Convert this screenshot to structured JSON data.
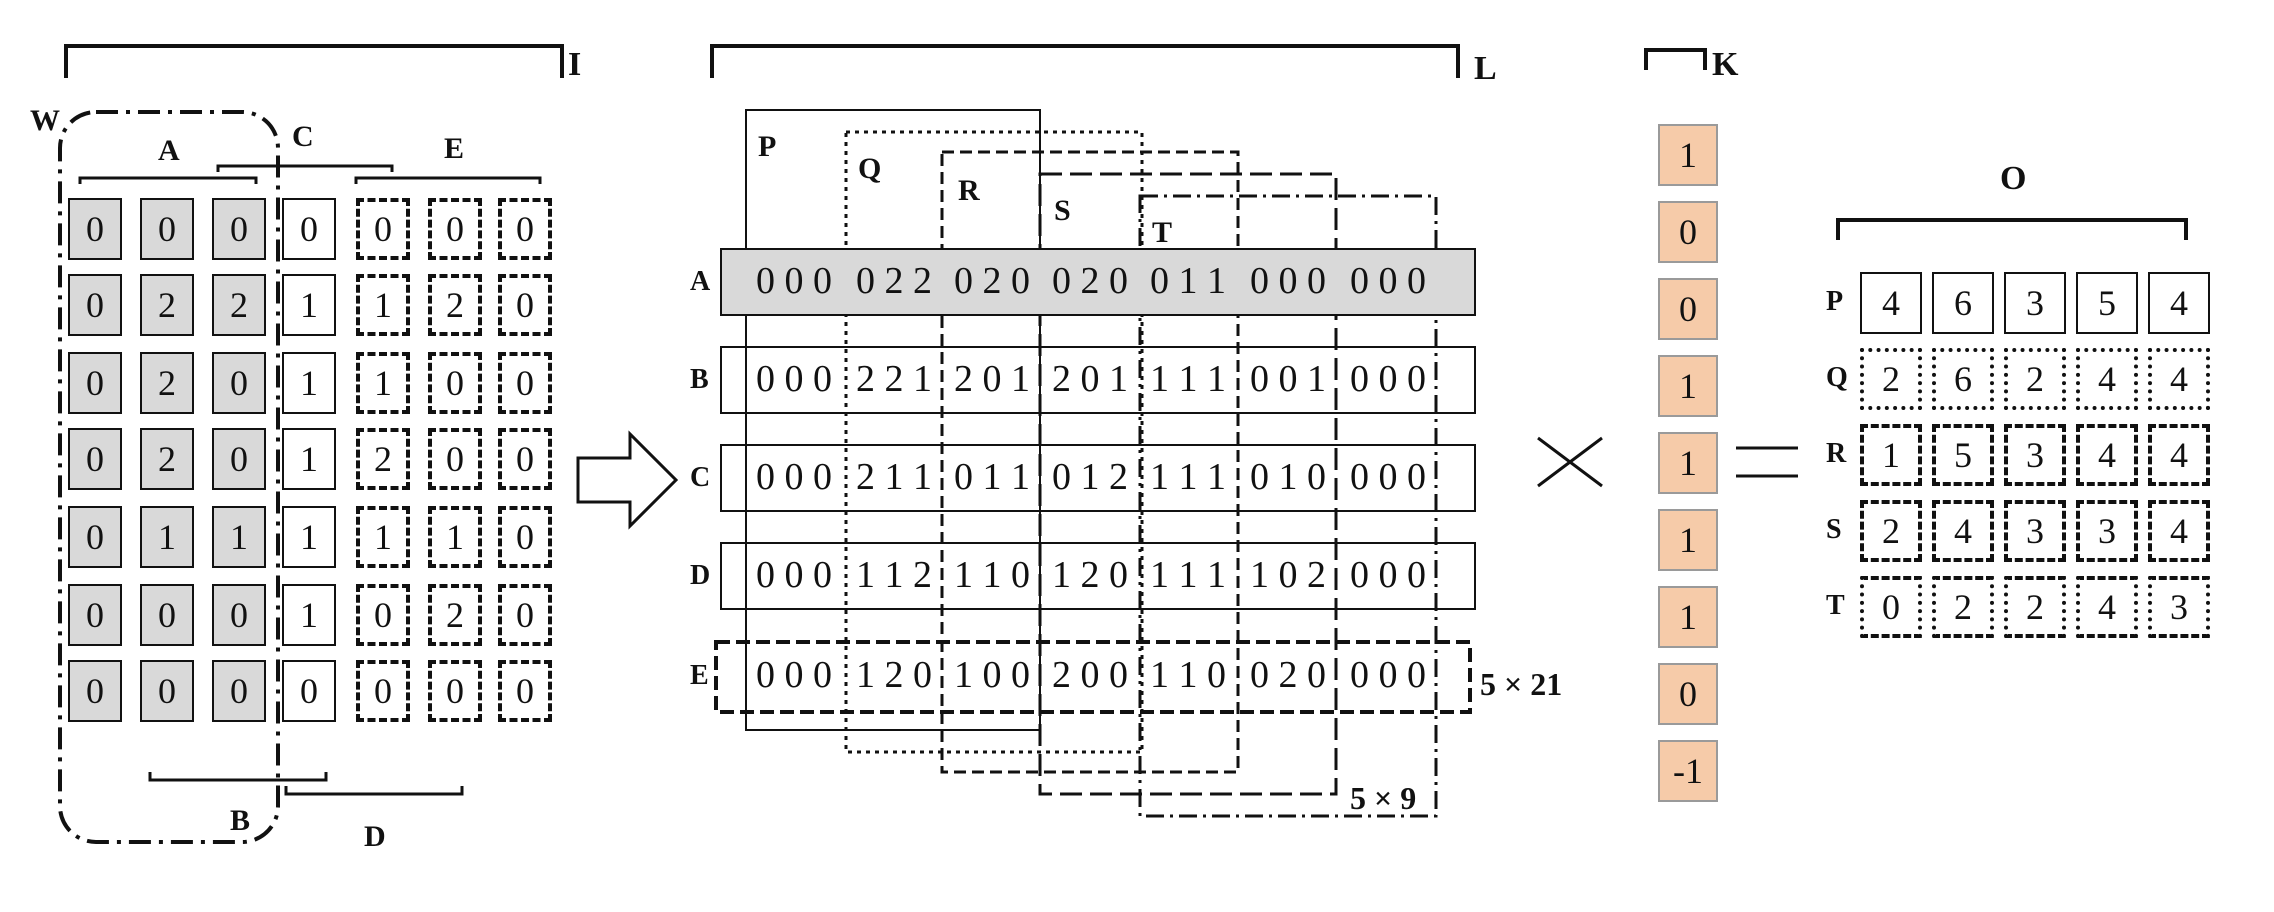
{
  "labels": {
    "I": "I",
    "L": "L",
    "K": "K",
    "O": "O",
    "W": "W",
    "A": "A",
    "B": "B",
    "C": "C",
    "D": "D",
    "E": "E",
    "P": "P",
    "Q": "Q",
    "R": "R",
    "S": "S",
    "T": "T",
    "size_5x21": "5 × 21",
    "size_5x9": "5 × 9"
  },
  "grid": [
    [
      "0",
      "0",
      "0",
      "0",
      "0",
      "0",
      "0"
    ],
    [
      "0",
      "2",
      "2",
      "1",
      "1",
      "2",
      "0"
    ],
    [
      "0",
      "2",
      "0",
      "1",
      "1",
      "0",
      "0"
    ],
    [
      "0",
      "2",
      "0",
      "1",
      "2",
      "0",
      "0"
    ],
    [
      "0",
      "1",
      "1",
      "1",
      "1",
      "1",
      "0"
    ],
    [
      "0",
      "0",
      "0",
      "1",
      "0",
      "2",
      "0"
    ],
    [
      "0",
      "0",
      "0",
      "0",
      "0",
      "0",
      "0"
    ]
  ],
  "matrix_rows": [
    {
      "label": "A",
      "segments": [
        "0 0 0",
        "0 2 2",
        "0 2 0",
        "0 2 0",
        "0 1 1",
        "0 0 0",
        "0 0 0"
      ]
    },
    {
      "label": "B",
      "segments": [
        "0 0 0",
        "2 2 1",
        "2 0 1",
        "2 0 1",
        "1 1 1",
        "0 0 1",
        "0 0 0"
      ]
    },
    {
      "label": "C",
      "segments": [
        "0 0 0",
        "2 1 1",
        "0 1 1",
        "0 1 2",
        "1 1 1",
        "0 1 0",
        "0 0 0"
      ]
    },
    {
      "label": "D",
      "segments": [
        "0 0 0",
        "1 1 2",
        "1 1 0",
        "1 2 0",
        "1 1 1",
        "1 0 2",
        "0 0 0"
      ]
    },
    {
      "label": "E",
      "segments": [
        "0 0 0",
        "1 2 0",
        "1 0 0",
        "2 0 0",
        "1 1 0",
        "0 2 0",
        "0 0 0"
      ]
    }
  ],
  "kernel": [
    "1",
    "0",
    "0",
    "1",
    "1",
    "1",
    "1",
    "0",
    "-1"
  ],
  "operators": {
    "times": "×",
    "equals": "="
  },
  "output": [
    {
      "label": "P",
      "values": [
        "4",
        "6",
        "3",
        "5",
        "4"
      ]
    },
    {
      "label": "Q",
      "values": [
        "2",
        "6",
        "2",
        "4",
        "4"
      ]
    },
    {
      "label": "R",
      "values": [
        "1",
        "5",
        "3",
        "4",
        "4"
      ]
    },
    {
      "label": "S",
      "values": [
        "2",
        "4",
        "3",
        "3",
        "4"
      ]
    },
    {
      "label": "T",
      "values": [
        "0",
        "2",
        "2",
        "4",
        "3"
      ]
    }
  ]
}
